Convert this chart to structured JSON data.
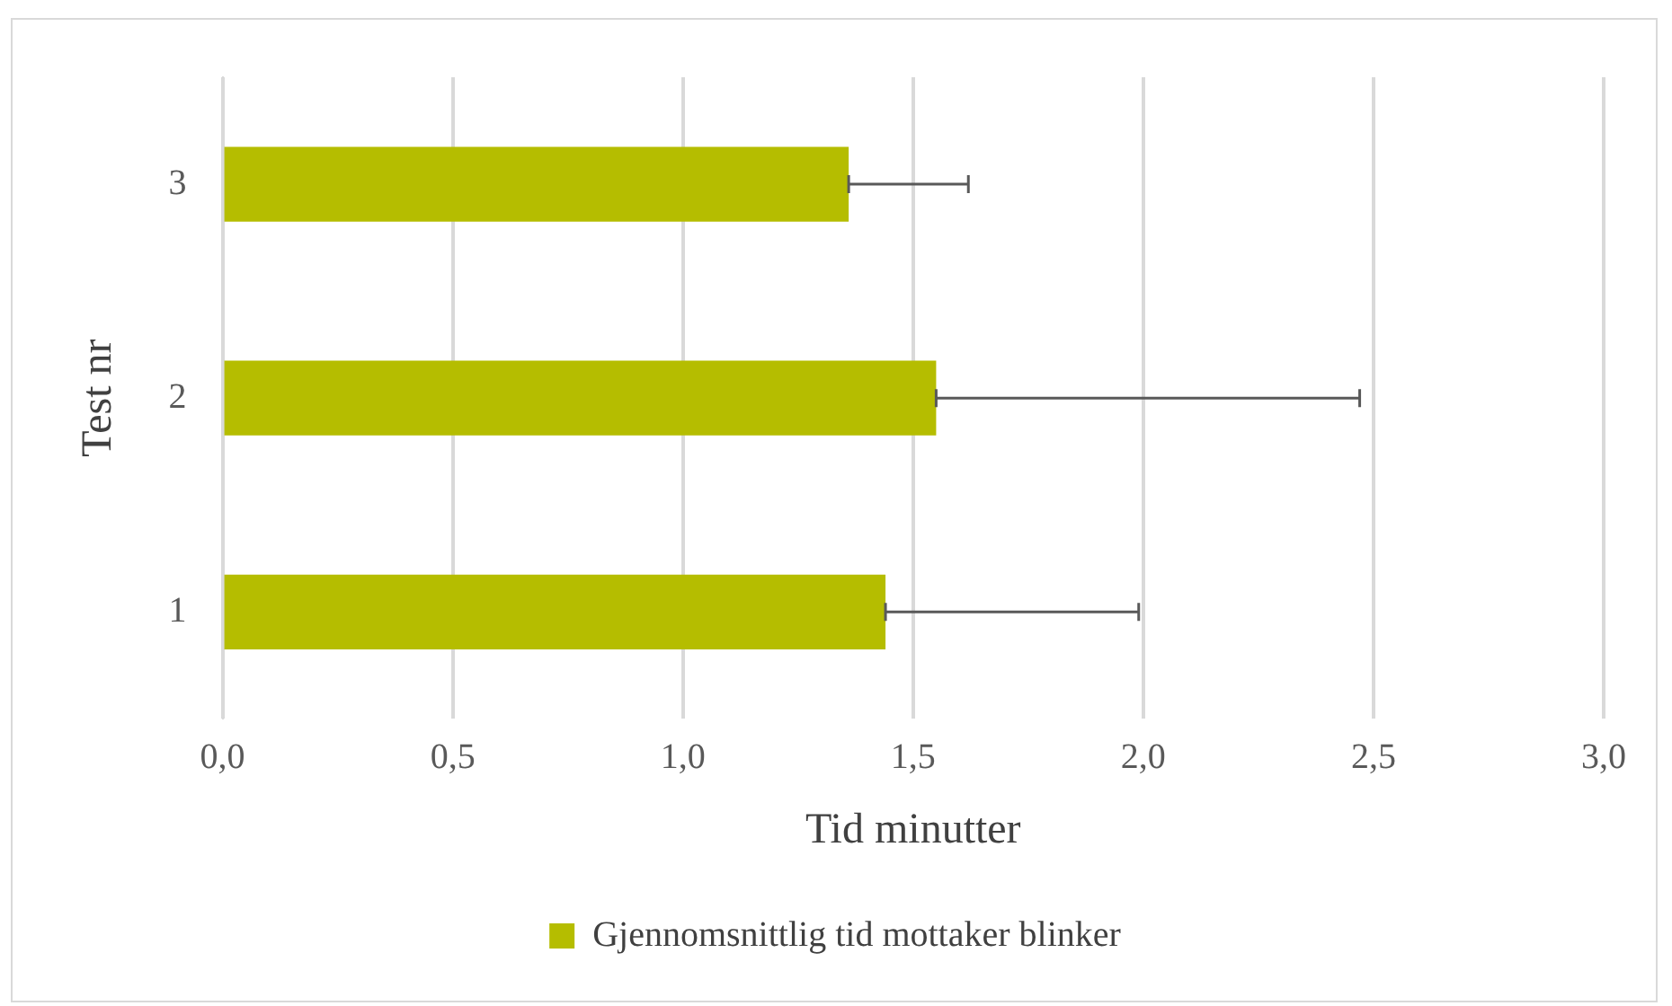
{
  "chart_data": {
    "type": "bar",
    "orientation": "horizontal",
    "xlabel": "Tid minutter",
    "ylabel": "Test nr",
    "categories": [
      "3",
      "2",
      "1"
    ],
    "series": [
      {
        "name": "Gjennomsnittlig tid mottaker blinker",
        "color": "#b5bd00",
        "values": [
          1.36,
          1.55,
          1.44
        ],
        "errors": [
          [
            1.36,
            1.62
          ],
          [
            1.55,
            2.47
          ],
          [
            1.44,
            1.99
          ]
        ]
      }
    ],
    "xlim": [
      0,
      3
    ],
    "xticks": [
      {
        "value": 0,
        "label": "0,0"
      },
      {
        "value": 0.5,
        "label": "0,5"
      },
      {
        "value": 1,
        "label": "1,0"
      },
      {
        "value": 1.5,
        "label": "1,5"
      },
      {
        "value": 2,
        "label": "2,0"
      },
      {
        "value": 2.5,
        "label": "2,5"
      },
      {
        "value": 3,
        "label": "3,0"
      }
    ],
    "grid": "x",
    "legend": "bottom"
  }
}
